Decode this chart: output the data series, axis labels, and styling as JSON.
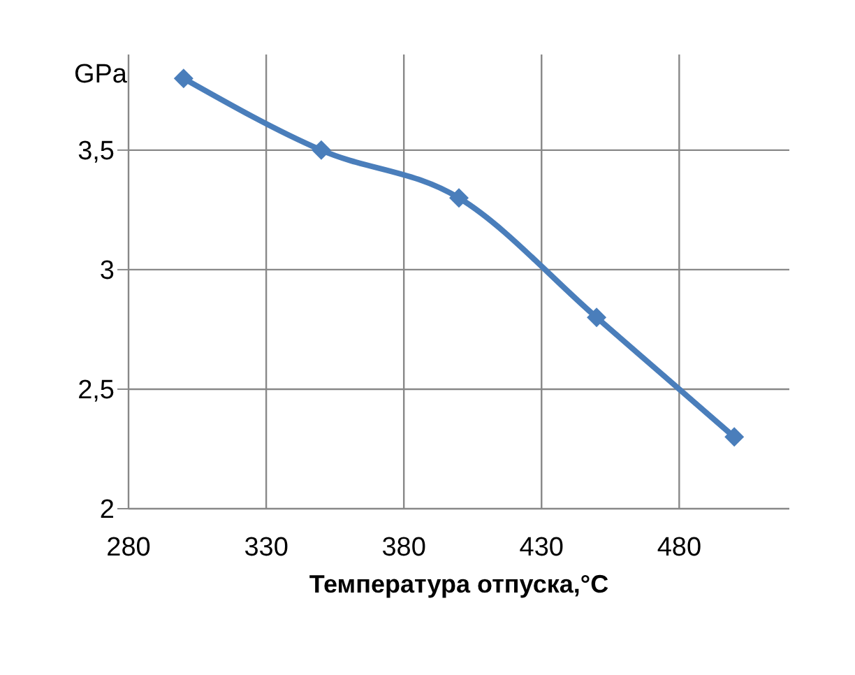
{
  "chart_data": {
    "type": "line",
    "xlabel": "Температура отпуска,°C",
    "ylabel": "GPa",
    "x": [
      300,
      350,
      400,
      450,
      500
    ],
    "series": [
      {
        "color": "#4a7ebb",
        "values": [
          3.8,
          3.5,
          3.3,
          2.8,
          2.3
        ]
      }
    ],
    "xlim": [
      280,
      520
    ],
    "xticks": [
      280,
      330,
      380,
      430,
      480
    ],
    "ylim": [
      2,
      3.9
    ],
    "yticks": [
      2,
      {
        "value": 2.5,
        "label": "2,5"
      },
      3,
      {
        "value": 3.5,
        "label": "3,5"
      }
    ],
    "grid": true,
    "marker": "diamond",
    "line_style": "solid"
  }
}
